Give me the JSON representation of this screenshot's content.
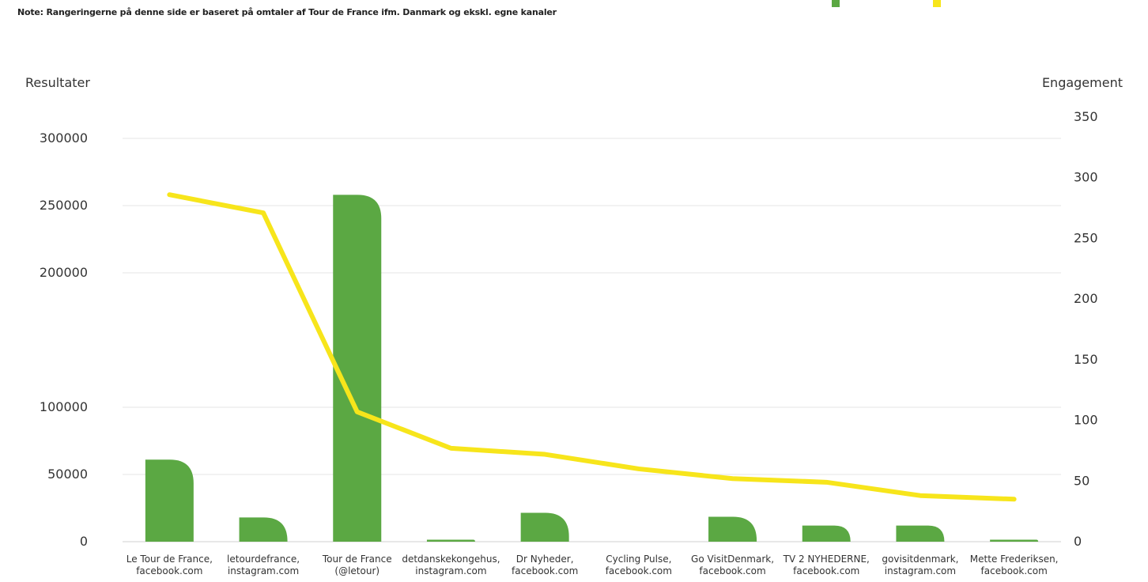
{
  "note": "Note: Rangeringerne på denne side er baseret på omtaler af Tour de France ifm. Danmark og ekskl. egne kanaler",
  "colors": {
    "bar": "#5ba843",
    "line": "#f7e51b",
    "grid": "#e4e4e4",
    "text": "#333333"
  },
  "chart_data": {
    "type": "bar",
    "title": "",
    "y_left_label": "Resultater",
    "y_right_label": "Engagement",
    "y_left_ticks": [
      "0",
      "50000",
      "100000",
      "200000",
      "250000",
      "300000"
    ],
    "y_right_ticks": [
      "0",
      "50",
      "100",
      "150",
      "200",
      "250",
      "300",
      "350"
    ],
    "categories": [
      [
        "Le Tour de France,",
        "facebook.com"
      ],
      [
        "letourdefrance,",
        "instagram.com"
      ],
      [
        "Tour de France",
        "(@letour)"
      ],
      [
        "detdanskekongehus,",
        "instagram.com"
      ],
      [
        "Dr Nyheder,",
        "facebook.com"
      ],
      [
        "Cycling Pulse,",
        "facebook.com"
      ],
      [
        "Go VisitDenmark,",
        "facebook.com"
      ],
      [
        "TV 2 NYHEDERNE,",
        "facebook.com"
      ],
      [
        "govisitdenmark,",
        "instagram.com"
      ],
      [
        "Mette Frederiksen,",
        "facebook.com"
      ]
    ],
    "series": [
      {
        "type": "bar",
        "axis": "left",
        "values": [
          61000,
          18000,
          258000,
          1500,
          21500,
          0,
          18500,
          12000,
          12000,
          1500
        ]
      },
      {
        "type": "line",
        "axis": "right",
        "values": [
          286,
          271,
          107,
          77,
          72,
          60,
          52,
          49,
          38,
          35
        ]
      }
    ]
  }
}
